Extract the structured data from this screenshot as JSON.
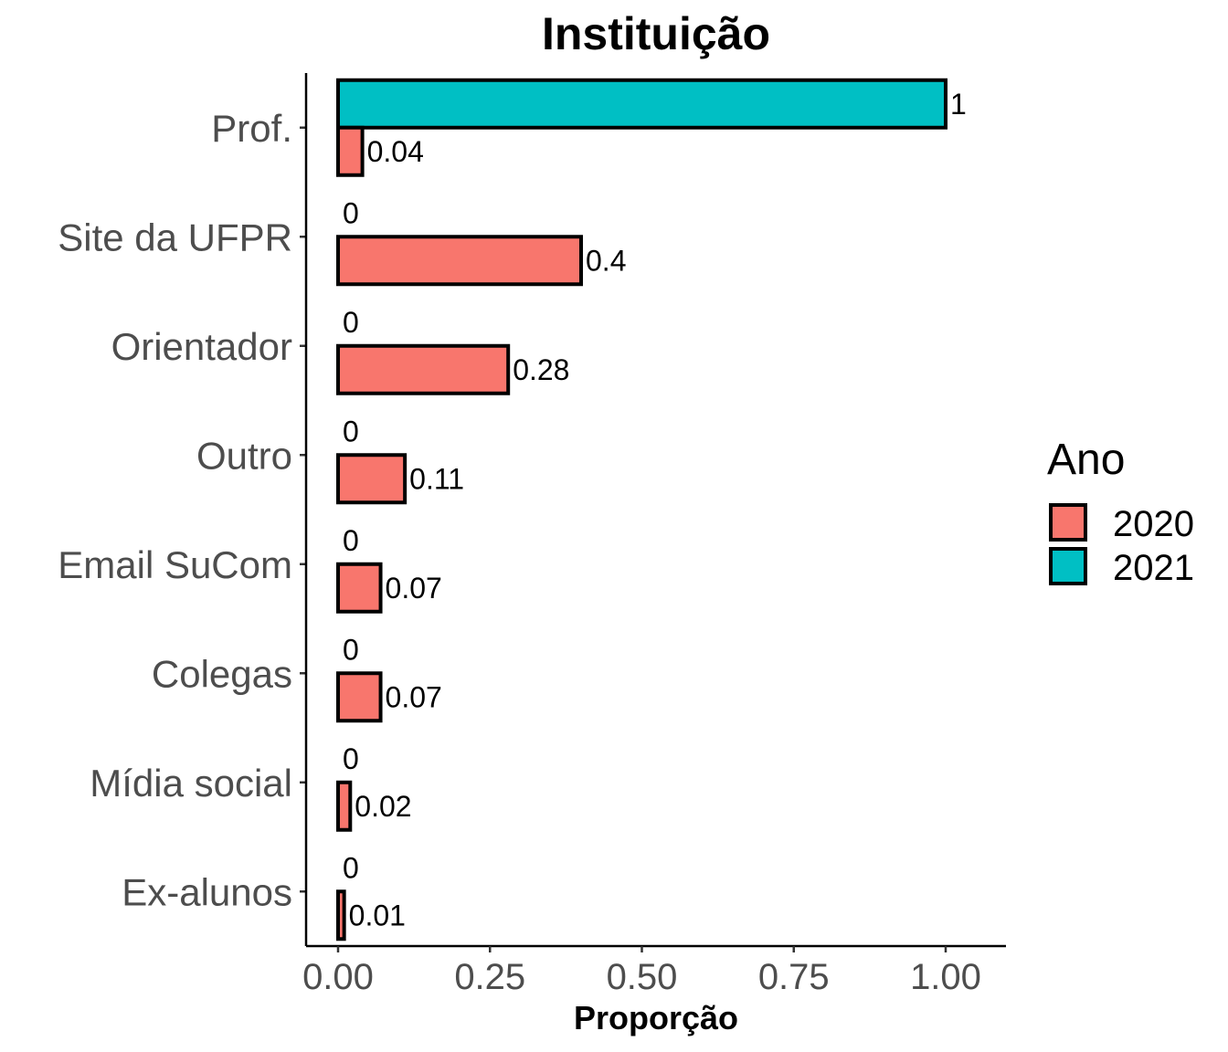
{
  "chart_data": {
    "type": "bar",
    "orientation": "horizontal",
    "title": "Instituição",
    "xlabel": "Proporção",
    "ylabel": "",
    "categories": [
      "Prof.",
      "Site da UFPR",
      "Orientador",
      "Outro",
      "Email SuCom",
      "Colegas",
      "Mídia social",
      "Ex-alunos"
    ],
    "series": [
      {
        "name": "2020",
        "color": "#F8766D",
        "values": [
          0.04,
          0.4,
          0.28,
          0.11,
          0.07,
          0.07,
          0.02,
          0.01
        ],
        "labels": [
          "0.04",
          "0.4",
          "0.28",
          "0.11",
          "0.07",
          "0.07",
          "0.02",
          "0.01"
        ]
      },
      {
        "name": "2021",
        "color": "#00BFC4",
        "values": [
          1,
          0,
          0,
          0,
          0,
          0,
          0,
          0
        ],
        "labels": [
          "1",
          "0",
          "0",
          "0",
          "0",
          "0",
          "0",
          "0"
        ]
      }
    ],
    "xlim": [
      0,
      1
    ],
    "xticks": [
      "0.00",
      "0.25",
      "0.50",
      "0.75",
      "1.00"
    ],
    "legend": {
      "title": "Ano",
      "position": "right",
      "entries": [
        "2020",
        "2021"
      ]
    },
    "grid": false
  }
}
